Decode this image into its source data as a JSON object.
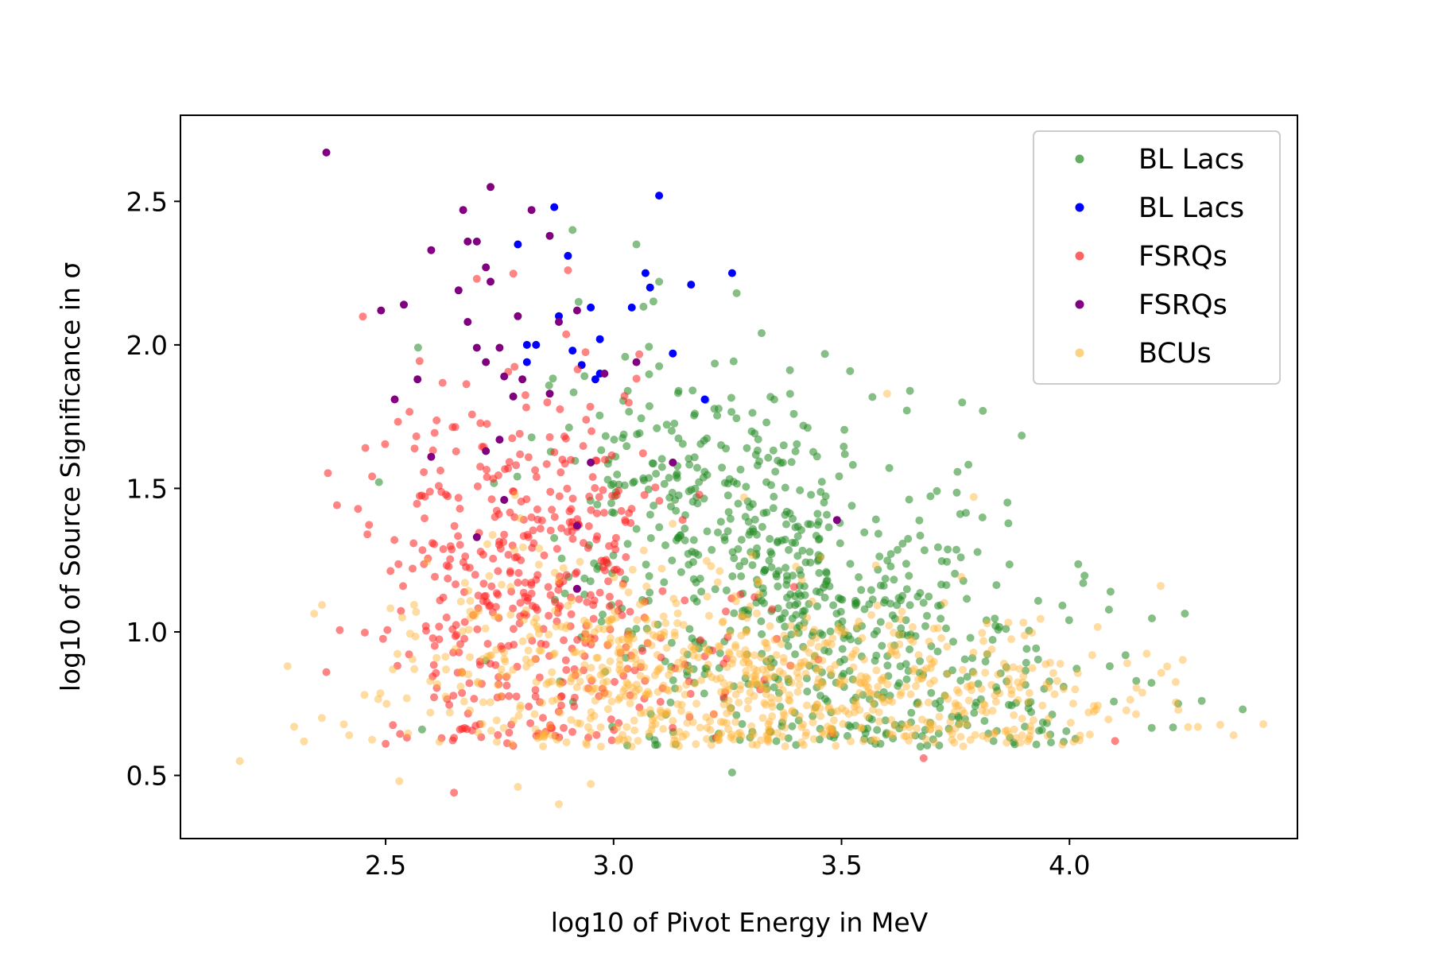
{
  "chart_data": {
    "type": "scatter",
    "title": "",
    "xlabel": "log10 of Pivot Energy in MeV",
    "ylabel": "log10 of Source Significance in σ",
    "xlim": [
      2.05,
      4.5
    ],
    "ylim": [
      0.28,
      2.8
    ],
    "xticks": [
      "2.5",
      "3.0",
      "3.5",
      "4.0"
    ],
    "yticks": [
      "0.5",
      "1.0",
      "1.5",
      "2.0",
      "2.5"
    ],
    "grid": false,
    "legend_position": "top-right",
    "series": [
      {
        "name": "BL Lacs",
        "color": "#228b22",
        "alpha": 0.55,
        "clusters": [
          {
            "count": 500,
            "cx": 3.45,
            "cy": 1.1,
            "sx": 0.23,
            "sy": 0.3
          },
          {
            "count": 180,
            "cx": 3.15,
            "cy": 1.55,
            "sx": 0.15,
            "sy": 0.2
          },
          {
            "count": 90,
            "cx": 3.8,
            "cy": 0.8,
            "sx": 0.2,
            "sy": 0.15
          }
        ],
        "points": [
          [
            3.1,
            2.22
          ],
          [
            3.27,
            2.18
          ],
          [
            3.05,
            2.35
          ],
          [
            2.91,
            2.4
          ],
          [
            3.81,
            1.77
          ],
          [
            3.65,
            1.84
          ],
          [
            4.03,
            1.17
          ],
          [
            4.09,
            1.14
          ],
          [
            4.38,
            0.73
          ],
          [
            4.29,
            0.76
          ],
          [
            3.26,
            0.51
          ],
          [
            2.58,
            0.66
          ],
          [
            2.72,
            0.9
          ]
        ]
      },
      {
        "name": "BL Lacs",
        "color": "#0000ff",
        "alpha": 1.0,
        "points": [
          [
            2.87,
            2.48
          ],
          [
            3.1,
            2.52
          ],
          [
            2.79,
            2.35
          ],
          [
            2.9,
            2.31
          ],
          [
            3.07,
            2.25
          ],
          [
            3.26,
            2.25
          ],
          [
            3.17,
            2.21
          ],
          [
            3.08,
            2.2
          ],
          [
            2.95,
            2.13
          ],
          [
            3.04,
            2.13
          ],
          [
            2.88,
            2.1
          ],
          [
            2.97,
            2.02
          ],
          [
            2.81,
            2.0
          ],
          [
            2.83,
            2.0
          ],
          [
            2.91,
            1.98
          ],
          [
            3.13,
            1.97
          ],
          [
            2.81,
            1.94
          ],
          [
            2.93,
            1.93
          ],
          [
            2.97,
            1.9
          ],
          [
            2.96,
            1.88
          ],
          [
            3.2,
            1.81
          ]
        ]
      },
      {
        "name": "FSRQs",
        "color": "#ff2020",
        "alpha": 0.55,
        "clusters": [
          {
            "count": 220,
            "cx": 2.87,
            "cy": 1.3,
            "sx": 0.13,
            "sy": 0.3
          },
          {
            "count": 130,
            "cx": 2.72,
            "cy": 1.05,
            "sx": 0.12,
            "sy": 0.32
          },
          {
            "count": 90,
            "cx": 3.05,
            "cy": 0.9,
            "sx": 0.2,
            "sy": 0.2
          },
          {
            "count": 40,
            "cx": 2.6,
            "cy": 1.55,
            "sx": 0.1,
            "sy": 0.3
          }
        ],
        "points": [
          [
            2.65,
            0.44
          ],
          [
            2.5,
            0.61
          ],
          [
            2.9,
            2.26
          ],
          [
            2.7,
            2.23
          ],
          [
            3.68,
            0.56
          ],
          [
            4.1,
            0.62
          ],
          [
            2.37,
            0.86
          ],
          [
            2.46,
            1.34
          ]
        ]
      },
      {
        "name": "FSRQs",
        "color": "#800080",
        "alpha": 1.0,
        "points": [
          [
            2.37,
            2.67
          ],
          [
            2.73,
            2.55
          ],
          [
            2.67,
            2.47
          ],
          [
            2.82,
            2.47
          ],
          [
            2.86,
            2.38
          ],
          [
            2.68,
            2.36
          ],
          [
            2.7,
            2.36
          ],
          [
            2.6,
            2.33
          ],
          [
            2.72,
            2.27
          ],
          [
            2.73,
            2.22
          ],
          [
            2.66,
            2.19
          ],
          [
            2.54,
            2.14
          ],
          [
            2.49,
            2.12
          ],
          [
            2.92,
            2.12
          ],
          [
            2.79,
            2.1
          ],
          [
            2.68,
            2.08
          ],
          [
            2.88,
            2.08
          ],
          [
            2.7,
            1.99
          ],
          [
            2.75,
            1.99
          ],
          [
            2.72,
            1.94
          ],
          [
            2.98,
            1.9
          ],
          [
            2.57,
            1.88
          ],
          [
            2.76,
            1.89
          ],
          [
            2.78,
            1.82
          ],
          [
            2.52,
            1.81
          ],
          [
            2.86,
            1.83
          ],
          [
            2.75,
            1.67
          ],
          [
            2.72,
            1.63
          ],
          [
            2.6,
            1.61
          ],
          [
            2.95,
            1.59
          ],
          [
            3.13,
            1.59
          ],
          [
            2.76,
            1.46
          ],
          [
            2.7,
            1.33
          ],
          [
            2.92,
            1.37
          ],
          [
            2.92,
            1.15
          ],
          [
            3.49,
            1.39
          ],
          [
            3.05,
            1.94
          ],
          [
            2.8,
            1.88
          ]
        ]
      },
      {
        "name": "BCUs",
        "color": "#ffb230",
        "alpha": 0.45,
        "clusters": [
          {
            "count": 420,
            "cx": 3.15,
            "cy": 0.82,
            "sx": 0.28,
            "sy": 0.17
          },
          {
            "count": 260,
            "cx": 3.55,
            "cy": 0.8,
            "sx": 0.28,
            "sy": 0.15
          },
          {
            "count": 120,
            "cx": 2.85,
            "cy": 0.95,
            "sx": 0.18,
            "sy": 0.22
          },
          {
            "count": 60,
            "cx": 3.95,
            "cy": 0.7,
            "sx": 0.18,
            "sy": 0.1
          }
        ],
        "points": [
          [
            2.18,
            0.55
          ],
          [
            2.88,
            0.4
          ],
          [
            2.53,
            0.48
          ],
          [
            2.79,
            0.46
          ],
          [
            2.95,
            0.47
          ],
          [
            4.36,
            0.64
          ],
          [
            4.2,
            1.16
          ],
          [
            3.6,
            1.83
          ],
          [
            3.79,
            1.47
          ],
          [
            2.36,
            0.7
          ],
          [
            2.42,
            0.64
          ]
        ]
      }
    ]
  }
}
